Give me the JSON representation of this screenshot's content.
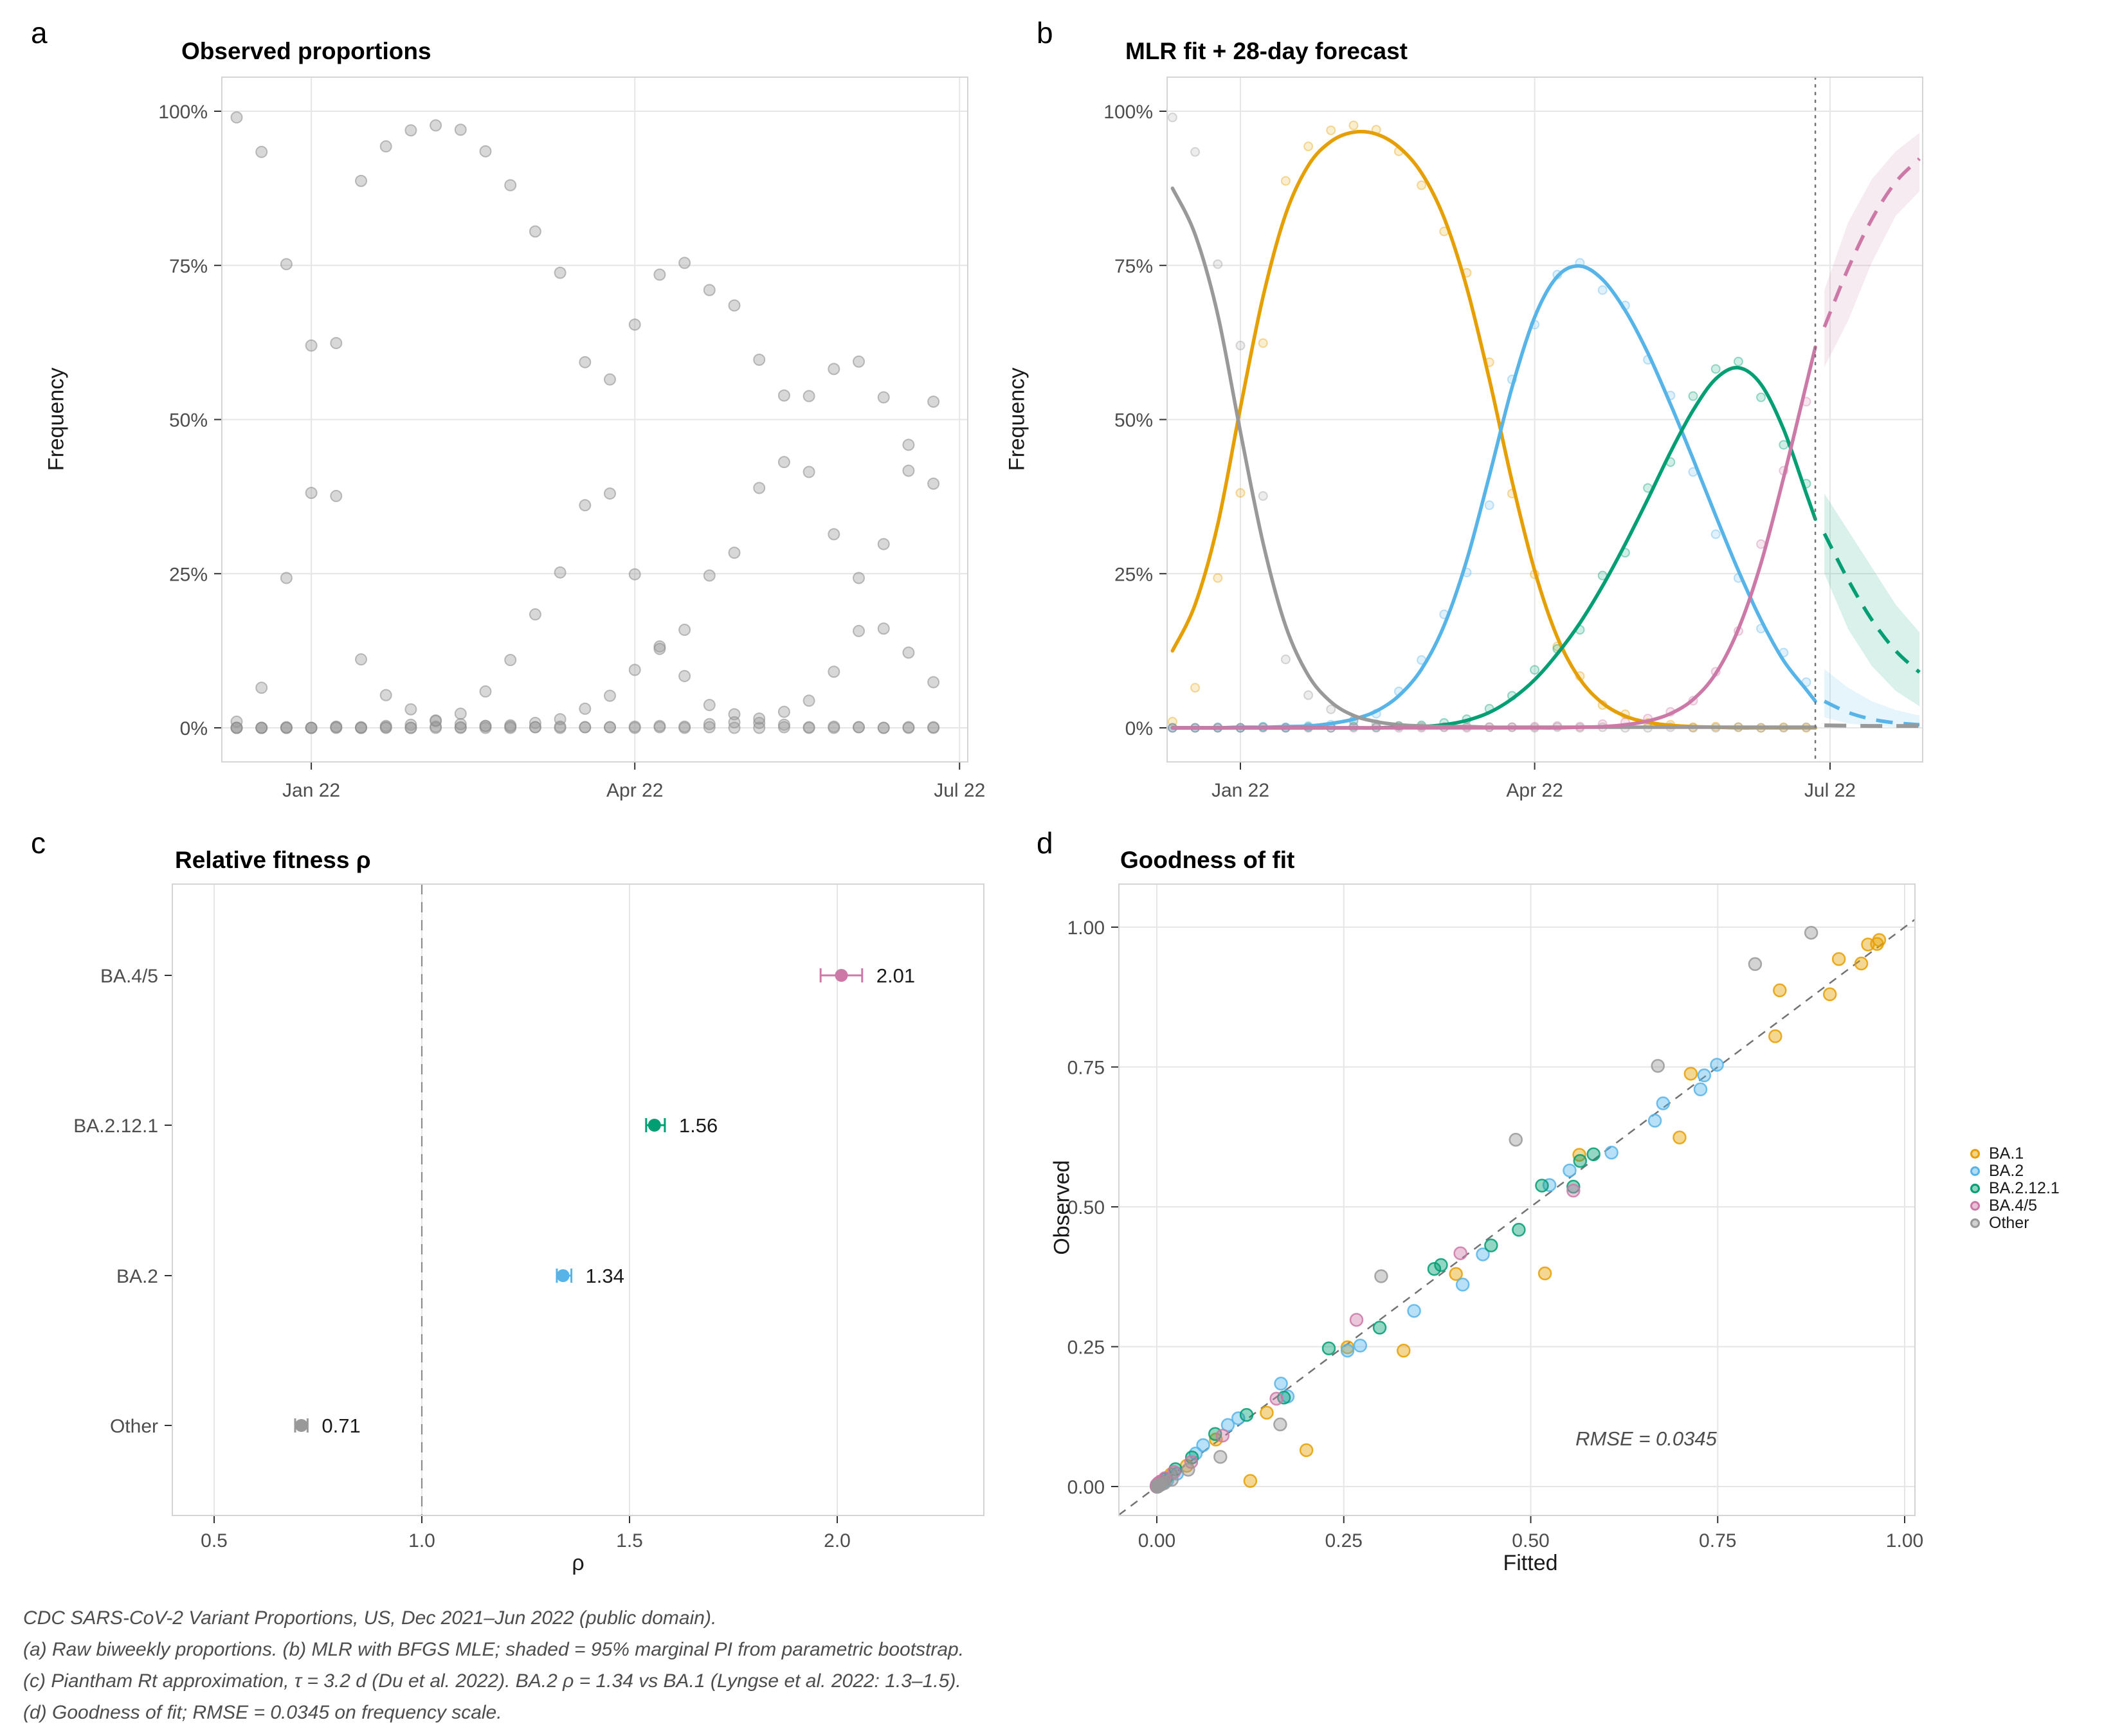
{
  "panels": {
    "a": {
      "tag": "a",
      "title": "Observed proportions",
      "ylabel": "Frequency"
    },
    "b": {
      "tag": "b",
      "title": "MLR fit + 28-day forecast",
      "ylabel": "Frequency"
    },
    "c": {
      "tag": "c",
      "title": "Relative fitness ρ",
      "xlabel": "ρ"
    },
    "d": {
      "tag": "d",
      "title": "Goodness of fit",
      "xlabel": "Fitted",
      "ylabel": "Observed"
    }
  },
  "caption": {
    "lines": [
      "CDC SARS-CoV-2 Variant Proportions, US, Dec 2021–Jun 2022 (public domain).",
      "(a) Raw biweekly proportions. (b) MLR with BFGS MLE; shaded = 95% marginal PI from parametric bootstrap.",
      "(c) Piantham Rt approximation, τ = 3.2 d (Du et al. 2022). BA.2 ρ = 1.34 vs BA.1 (Lyngse et al. 2022: 1.3–1.5).",
      "(d) Goodness of fit; RMSE = 0.0345 on frequency scale."
    ]
  },
  "chart_data": [
    {
      "panel": "a",
      "type": "scatter",
      "title": "Observed proportions",
      "ylabel": "Frequency",
      "ylim": [
        0,
        100
      ],
      "ytick_labels": [
        "0%",
        "25%",
        "50%",
        "75%",
        "100%"
      ],
      "ytick_values": [
        0,
        25,
        50,
        75,
        100
      ],
      "xtick_labels": [
        "Jan 22",
        "Apr 22",
        "Jul 22"
      ],
      "xtick_weeks": [
        3,
        16,
        29.05
      ],
      "x_unit": "weeks from first observation (weekly points, Dec 2021 to late Jun 2022)",
      "x_weeks": [
        0,
        1,
        2,
        3,
        4,
        5,
        6,
        7,
        8,
        9,
        10,
        11,
        12,
        13,
        14,
        15,
        16,
        17,
        18,
        19,
        20,
        21,
        22,
        23,
        24,
        25,
        26,
        27,
        28
      ],
      "point_color": "#999999",
      "note": "all variants plotted as grey points",
      "series": [
        {
          "name": "BA.1",
          "observed": [
            1.0,
            6.5,
            24.3,
            38.1,
            62.4,
            88.7,
            94.3,
            96.9,
            97.7,
            97.0,
            93.5,
            88.0,
            80.5,
            73.8,
            59.3,
            38.0,
            24.9,
            13.2,
            8.4,
            3.7,
            2.2,
            0.8,
            0.5,
            0.1,
            0.2,
            0.1,
            0.0,
            0.1,
            0.0
          ]
        },
        {
          "name": "BA.2",
          "observed": [
            0.0,
            0.0,
            0.1,
            0.0,
            0.2,
            0.1,
            0.3,
            0.5,
            1.1,
            2.3,
            5.9,
            11.0,
            18.4,
            25.2,
            36.1,
            56.5,
            65.4,
            73.5,
            75.4,
            71.0,
            68.5,
            59.7,
            53.9,
            41.5,
            31.4,
            24.3,
            16.1,
            12.2,
            7.4
          ]
        },
        {
          "name": "BA.2.12.1",
          "observed": [
            0.0,
            0.0,
            0.0,
            0.0,
            0.1,
            0.0,
            0.1,
            0.0,
            0.2,
            0.1,
            0.3,
            0.4,
            0.8,
            1.4,
            3.1,
            5.2,
            9.4,
            12.8,
            15.9,
            24.7,
            28.4,
            38.9,
            43.1,
            53.8,
            58.2,
            59.4,
            53.6,
            45.9,
            39.6
          ]
        },
        {
          "name": "BA.4/5",
          "observed": [
            0.0,
            0.0,
            0.0,
            0.0,
            0.0,
            0.0,
            0.0,
            0.0,
            0.0,
            0.0,
            0.0,
            0.0,
            0.1,
            0.0,
            0.1,
            0.1,
            0.2,
            0.3,
            0.2,
            0.6,
            0.9,
            1.5,
            2.6,
            4.4,
            9.1,
            15.7,
            29.8,
            41.7,
            52.9
          ]
        },
        {
          "name": "Other",
          "observed": [
            99.0,
            93.4,
            75.2,
            62.0,
            37.6,
            11.1,
            5.3,
            3.0,
            1.2,
            0.6,
            0.3,
            0.2,
            0.1,
            0.2,
            0.1,
            0.1,
            0.0,
            0.1,
            0.0,
            0.1,
            0.0,
            0.0,
            0.1,
            0.0,
            0.0,
            0.1,
            0.0,
            0.0,
            0.1
          ]
        }
      ]
    },
    {
      "panel": "b",
      "type": "line",
      "title": "MLR fit + 28-day forecast",
      "ylabel": "Frequency",
      "ylim": [
        0,
        100
      ],
      "ytick_labels": [
        "0%",
        "25%",
        "50%",
        "75%",
        "100%"
      ],
      "ytick_values": [
        0,
        25,
        50,
        75,
        100
      ],
      "xtick_labels": [
        "Jan 22",
        "Apr 22",
        "Jul 22"
      ],
      "xtick_weeks": [
        3,
        16,
        29.05
      ],
      "x_weeks": [
        0,
        1,
        2,
        3,
        4,
        5,
        6,
        7,
        8,
        9,
        10,
        11,
        12,
        13,
        14,
        15,
        16,
        17,
        18,
        19,
        20,
        21,
        22,
        23,
        24,
        25,
        26,
        27,
        28
      ],
      "cutoff_week": 28.4,
      "forecast_x": [
        28.8,
        29.85,
        30.9,
        31.95,
        33.0
      ],
      "note": "observed points identical to panel a but tinted per variant; solid = MLR fit, dashed = forecast mean, shaded band = 95% PI",
      "series": [
        {
          "name": "BA.1",
          "color": "#E69F00",
          "fitted": [
            12.5,
            20.0,
            33.0,
            51.9,
            69.9,
            83.3,
            91.2,
            95.1,
            96.6,
            96.3,
            94.2,
            90.0,
            82.7,
            71.4,
            56.5,
            40.0,
            25.5,
            14.7,
            7.9,
            4.0,
            1.9,
            0.9,
            0.4,
            0.2,
            0.1,
            0.0,
            0.0,
            0.0,
            0.0
          ],
          "forecast_mean": [
            0.0,
            0.0,
            0.0,
            0.0,
            0.0
          ],
          "forecast_lo": [
            0.0,
            0.0,
            0.0,
            0.0,
            0.0
          ],
          "forecast_hi": [
            0.2,
            0.2,
            0.1,
            0.1,
            0.1
          ]
        },
        {
          "name": "BA.2",
          "color": "#56B4E9",
          "fitted": [
            0.0,
            0.0,
            0.0,
            0.1,
            0.1,
            0.2,
            0.3,
            0.7,
            1.4,
            2.7,
            5.2,
            9.5,
            16.6,
            27.2,
            40.9,
            55.2,
            66.6,
            73.2,
            74.9,
            72.7,
            67.7,
            60.8,
            52.5,
            43.6,
            34.4,
            25.5,
            17.5,
            10.9,
            6.2
          ],
          "forecast_mean": [
            4.3,
            2.5,
            1.4,
            0.8,
            0.5
          ],
          "forecast_lo": [
            1.7,
            0.7,
            0.3,
            0.1,
            0.0
          ],
          "forecast_hi": [
            9.5,
            6.5,
            4.3,
            2.9,
            2.0
          ]
        },
        {
          "name": "BA.2.12.1",
          "color": "#009E73",
          "fitted": [
            0.0,
            0.0,
            0.0,
            0.0,
            0.0,
            0.0,
            0.0,
            0.0,
            0.0,
            0.0,
            0.1,
            0.2,
            0.5,
            1.2,
            2.5,
            4.7,
            7.8,
            12.0,
            17.0,
            23.0,
            29.8,
            37.1,
            44.7,
            51.5,
            56.6,
            58.4,
            55.7,
            48.4,
            38.0
          ],
          "forecast_mean": [
            31.5,
            24.0,
            17.5,
            12.5,
            9.0
          ],
          "forecast_lo": [
            25.0,
            16.0,
            10.0,
            6.0,
            3.5
          ],
          "forecast_hi": [
            38.0,
            32.0,
            26.0,
            20.0,
            15.5
          ]
        },
        {
          "name": "BA.4/5",
          "color": "#CC79A7",
          "fitted": [
            0.0,
            0.0,
            0.0,
            0.0,
            0.0,
            0.0,
            0.0,
            0.0,
            0.0,
            0.0,
            0.0,
            0.0,
            0.0,
            0.0,
            0.0,
            0.0,
            0.0,
            0.0,
            0.1,
            0.2,
            0.5,
            1.1,
            2.3,
            4.6,
            8.8,
            16.0,
            26.7,
            40.6,
            55.7
          ],
          "forecast_mean": [
            65.0,
            74.5,
            82.5,
            88.5,
            92.3
          ],
          "forecast_lo": [
            58.5,
            66.0,
            75.5,
            83.0,
            87.0
          ],
          "forecast_hi": [
            71.0,
            82.0,
            89.0,
            93.5,
            96.5
          ]
        },
        {
          "name": "Other",
          "color": "#999999",
          "fitted": [
            87.5,
            80.0,
            67.0,
            48.0,
            30.0,
            16.5,
            8.5,
            4.2,
            2.0,
            1.0,
            0.5,
            0.3,
            0.2,
            0.2,
            0.1,
            0.1,
            0.1,
            0.1,
            0.1,
            0.1,
            0.1,
            0.1,
            0.1,
            0.1,
            0.1,
            0.1,
            0.1,
            0.1,
            0.1
          ],
          "forecast_mean": [
            0.4,
            0.35,
            0.3,
            0.3,
            0.3
          ],
          "forecast_lo": [
            0.2,
            0.1,
            0.1,
            0.1,
            0.1
          ],
          "forecast_hi": [
            0.8,
            0.7,
            0.6,
            0.6,
            0.6
          ]
        }
      ]
    },
    {
      "panel": "c",
      "type": "dot",
      "title": "Relative fitness ρ",
      "xlabel": "ρ",
      "xtick_labels": [
        "0.5",
        "1.0",
        "1.5",
        "2.0"
      ],
      "xtick_values": [
        0.5,
        1.0,
        1.5,
        2.0
      ],
      "xlim": [
        0.4,
        2.34
      ],
      "reference_line": 1.0,
      "items": [
        {
          "label": "BA.4/5",
          "rho": 2.01,
          "ci": [
            1.96,
            2.06
          ],
          "value_label": "2.01",
          "color": "#CC79A7"
        },
        {
          "label": "BA.2.12.1",
          "rho": 1.56,
          "ci": [
            1.54,
            1.585
          ],
          "value_label": "1.56",
          "color": "#009E73"
        },
        {
          "label": "BA.2",
          "rho": 1.34,
          "ci": [
            1.325,
            1.36
          ],
          "value_label": "1.34",
          "color": "#56B4E9"
        },
        {
          "label": "Other",
          "rho": 0.71,
          "ci": [
            0.695,
            0.725
          ],
          "value_label": "0.71",
          "color": "#999999"
        }
      ]
    },
    {
      "panel": "d",
      "type": "scatter",
      "title": "Goodness of fit",
      "xlabel": "Fitted",
      "ylabel": "Observed",
      "xtick_labels": [
        "0.00",
        "0.25",
        "0.50",
        "0.75",
        "1.00"
      ],
      "ytick_labels": [
        "0.00",
        "0.25",
        "0.50",
        "0.75",
        "1.00"
      ],
      "tick_values": [
        0,
        0.25,
        0.5,
        0.75,
        1.0
      ],
      "diagonal": true,
      "annotation": "RMSE = 0.0345",
      "annotation_xy": [
        0.654,
        0.089
      ],
      "note": "points = (fitted/100, observed/100) for every variant-week from panels a and b",
      "legend": [
        {
          "label": "BA.1",
          "color": "#E69F00"
        },
        {
          "label": "BA.2",
          "color": "#56B4E9"
        },
        {
          "label": "BA.2.12.1",
          "color": "#009E73"
        },
        {
          "label": "BA.4/5",
          "color": "#CC79A7"
        },
        {
          "label": "Other",
          "color": "#999999"
        }
      ]
    }
  ]
}
